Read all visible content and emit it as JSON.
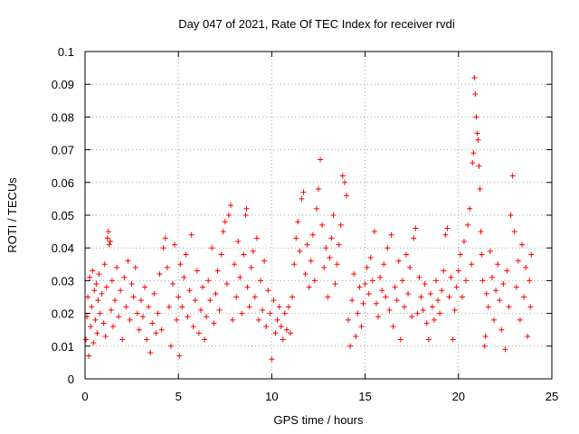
{
  "chart_data": {
    "type": "scatter",
    "title": "Day 047 of 2021, Rate Of TEC Index for receiver rvdi",
    "xlabel": "GPS time / hours",
    "ylabel": "ROTI / TECUs",
    "xlim": [
      0,
      25
    ],
    "ylim": [
      0,
      0.1
    ],
    "x_ticks": [
      "0",
      "5",
      "10",
      "15",
      "20",
      "25"
    ],
    "y_ticks": [
      "0",
      "0.01",
      "0.02",
      "0.03",
      "0.04",
      "0.05",
      "0.06",
      "0.07",
      "0.08",
      "0.09",
      "0.1"
    ],
    "grid": true,
    "marker": "+",
    "point_color": "#ff0000",
    "series": [
      {
        "name": "rvdi",
        "points": [
          [
            0.05,
            0.012
          ],
          [
            0.1,
            0.019
          ],
          [
            0.15,
            0.025
          ],
          [
            0.2,
            0.007
          ],
          [
            0.25,
            0.031
          ],
          [
            0.3,
            0.016
          ],
          [
            0.35,
            0.022
          ],
          [
            0.4,
            0.033
          ],
          [
            0.45,
            0.011
          ],
          [
            0.5,
            0.027
          ],
          [
            0.55,
            0.018
          ],
          [
            0.6,
            0.029
          ],
          [
            0.65,
            0.014
          ],
          [
            0.7,
            0.024
          ],
          [
            0.75,
            0.032
          ],
          [
            0.8,
            0.02
          ],
          [
            0.9,
            0.026
          ],
          [
            1.0,
            0.017
          ],
          [
            1.05,
            0.035
          ],
          [
            1.1,
            0.013
          ],
          [
            1.15,
            0.028
          ],
          [
            1.2,
            0.043
          ],
          [
            1.25,
            0.045
          ],
          [
            1.3,
            0.041
          ],
          [
            1.35,
            0.042
          ],
          [
            1.4,
            0.021
          ],
          [
            1.45,
            0.03
          ],
          [
            1.5,
            0.016
          ],
          [
            1.6,
            0.024
          ],
          [
            1.7,
            0.034
          ],
          [
            1.8,
            0.019
          ],
          [
            1.9,
            0.027
          ],
          [
            2.0,
            0.012
          ],
          [
            2.1,
            0.031
          ],
          [
            2.2,
            0.022
          ],
          [
            2.3,
            0.036
          ],
          [
            2.4,
            0.018
          ],
          [
            2.5,
            0.029
          ],
          [
            2.6,
            0.025
          ],
          [
            2.7,
            0.034
          ],
          [
            2.8,
            0.02
          ],
          [
            2.9,
            0.015
          ],
          [
            3.0,
            0.024
          ],
          [
            3.1,
            0.019
          ],
          [
            3.2,
            0.028
          ],
          [
            3.3,
            0.012
          ],
          [
            3.4,
            0.022
          ],
          [
            3.5,
            0.008
          ],
          [
            3.6,
            0.017
          ],
          [
            3.7,
            0.026
          ],
          [
            3.8,
            0.014
          ],
          [
            3.9,
            0.02
          ],
          [
            4.0,
            0.032
          ],
          [
            4.1,
            0.015
          ],
          [
            4.2,
            0.04
          ],
          [
            4.3,
            0.043
          ],
          [
            4.4,
            0.034
          ],
          [
            4.5,
            0.022
          ],
          [
            4.6,
            0.01
          ],
          [
            4.7,
            0.029
          ],
          [
            4.8,
            0.041
          ],
          [
            4.9,
            0.018
          ],
          [
            5.0,
            0.025
          ],
          [
            5.05,
            0.007
          ],
          [
            5.1,
            0.035
          ],
          [
            5.2,
            0.022
          ],
          [
            5.3,
            0.031
          ],
          [
            5.4,
            0.038
          ],
          [
            5.5,
            0.019
          ],
          [
            5.6,
            0.027
          ],
          [
            5.7,
            0.044
          ],
          [
            5.8,
            0.016
          ],
          [
            5.9,
            0.024
          ],
          [
            6.0,
            0.033
          ],
          [
            6.1,
            0.014
          ],
          [
            6.2,
            0.021
          ],
          [
            6.3,
            0.028
          ],
          [
            6.4,
            0.012
          ],
          [
            6.5,
            0.019
          ],
          [
            6.6,
            0.03
          ],
          [
            6.7,
            0.024
          ],
          [
            6.8,
            0.04
          ],
          [
            6.9,
            0.017
          ],
          [
            7.0,
            0.026
          ],
          [
            7.1,
            0.033
          ],
          [
            7.2,
            0.021
          ],
          [
            7.3,
            0.038
          ],
          [
            7.4,
            0.045
          ],
          [
            7.5,
            0.048
          ],
          [
            7.6,
            0.029
          ],
          [
            7.7,
            0.05
          ],
          [
            7.8,
            0.053
          ],
          [
            7.9,
            0.018
          ],
          [
            8.0,
            0.035
          ],
          [
            8.1,
            0.025
          ],
          [
            8.2,
            0.042
          ],
          [
            8.3,
            0.031
          ],
          [
            8.4,
            0.02
          ],
          [
            8.5,
            0.038
          ],
          [
            8.6,
            0.05
          ],
          [
            8.65,
            0.052
          ],
          [
            8.7,
            0.028
          ],
          [
            8.8,
            0.022
          ],
          [
            8.9,
            0.034
          ],
          [
            9.0,
            0.039
          ],
          [
            9.1,
            0.025
          ],
          [
            9.2,
            0.043
          ],
          [
            9.3,
            0.018
          ],
          [
            9.4,
            0.03
          ],
          [
            9.5,
            0.021
          ],
          [
            9.6,
            0.036
          ],
          [
            9.7,
            0.016
          ],
          [
            9.8,
            0.027
          ],
          [
            9.9,
            0.02
          ],
          [
            10.0,
            0.006
          ],
          [
            10.1,
            0.024
          ],
          [
            10.2,
            0.014
          ],
          [
            10.3,
            0.018
          ],
          [
            10.4,
            0.022
          ],
          [
            10.5,
            0.016
          ],
          [
            10.6,
            0.012
          ],
          [
            10.7,
            0.02
          ],
          [
            10.8,
            0.015
          ],
          [
            10.9,
            0.022
          ],
          [
            11.0,
            0.014
          ],
          [
            11.1,
            0.025
          ],
          [
            11.2,
            0.035
          ],
          [
            11.3,
            0.043
          ],
          [
            11.4,
            0.048
          ],
          [
            11.5,
            0.039
          ],
          [
            11.6,
            0.055
          ],
          [
            11.7,
            0.057
          ],
          [
            11.8,
            0.032
          ],
          [
            11.9,
            0.041
          ],
          [
            12.0,
            0.028
          ],
          [
            12.1,
            0.036
          ],
          [
            12.2,
            0.044
          ],
          [
            12.3,
            0.03
          ],
          [
            12.4,
            0.052
          ],
          [
            12.5,
            0.058
          ],
          [
            12.6,
            0.067
          ],
          [
            12.7,
            0.047
          ],
          [
            12.8,
            0.034
          ],
          [
            12.9,
            0.04
          ],
          [
            13.0,
            0.025
          ],
          [
            13.1,
            0.037
          ],
          [
            13.2,
            0.043
          ],
          [
            13.3,
            0.05
          ],
          [
            13.4,
            0.029
          ],
          [
            13.5,
            0.035
          ],
          [
            13.6,
            0.041
          ],
          [
            13.7,
            0.047
          ],
          [
            13.8,
            0.062
          ],
          [
            13.9,
            0.06
          ],
          [
            14.0,
            0.056
          ],
          [
            14.1,
            0.018
          ],
          [
            14.2,
            0.01
          ],
          [
            14.3,
            0.024
          ],
          [
            14.4,
            0.032
          ],
          [
            14.5,
            0.013
          ],
          [
            14.6,
            0.02
          ],
          [
            14.7,
            0.028
          ],
          [
            14.8,
            0.016
          ],
          [
            14.9,
            0.023
          ],
          [
            15.0,
            0.029
          ],
          [
            15.1,
            0.034
          ],
          [
            15.2,
            0.026
          ],
          [
            15.3,
            0.037
          ],
          [
            15.4,
            0.03
          ],
          [
            15.5,
            0.045
          ],
          [
            15.6,
            0.023
          ],
          [
            15.7,
            0.019
          ],
          [
            15.8,
            0.031
          ],
          [
            15.9,
            0.027
          ],
          [
            16.0,
            0.035
          ],
          [
            16.1,
            0.025
          ],
          [
            16.2,
            0.04
          ],
          [
            16.3,
            0.021
          ],
          [
            16.4,
            0.044
          ],
          [
            16.5,
            0.016
          ],
          [
            16.6,
            0.028
          ],
          [
            16.7,
            0.024
          ],
          [
            16.8,
            0.036
          ],
          [
            16.9,
            0.012
          ],
          [
            17.0,
            0.03
          ],
          [
            17.1,
            0.022
          ],
          [
            17.2,
            0.038
          ],
          [
            17.3,
            0.026
          ],
          [
            17.4,
            0.034
          ],
          [
            17.5,
            0.019
          ],
          [
            17.6,
            0.043
          ],
          [
            17.7,
            0.046
          ],
          [
            17.8,
            0.02
          ],
          [
            17.9,
            0.031
          ],
          [
            18.0,
            0.025
          ],
          [
            18.1,
            0.021
          ],
          [
            18.2,
            0.029
          ],
          [
            18.3,
            0.017
          ],
          [
            18.4,
            0.012
          ],
          [
            18.5,
            0.026
          ],
          [
            18.6,
            0.022
          ],
          [
            18.7,
            0.018
          ],
          [
            18.8,
            0.03
          ],
          [
            18.9,
            0.024
          ],
          [
            19.0,
            0.02
          ],
          [
            19.1,
            0.027
          ],
          [
            19.2,
            0.033
          ],
          [
            19.3,
            0.044
          ],
          [
            19.4,
            0.046
          ],
          [
            19.5,
            0.025
          ],
          [
            19.6,
            0.031
          ],
          [
            19.7,
            0.012
          ],
          [
            19.8,
            0.021
          ],
          [
            19.9,
            0.028
          ],
          [
            20.0,
            0.033
          ],
          [
            20.1,
            0.038
          ],
          [
            20.2,
            0.025
          ],
          [
            20.3,
            0.042
          ],
          [
            20.4,
            0.03
          ],
          [
            20.5,
            0.047
          ],
          [
            20.6,
            0.052
          ],
          [
            20.7,
            0.035
          ],
          [
            20.75,
            0.066
          ],
          [
            20.8,
            0.069
          ],
          [
            20.85,
            0.092
          ],
          [
            20.9,
            0.087
          ],
          [
            20.95,
            0.08
          ],
          [
            21.0,
            0.075
          ],
          [
            21.05,
            0.073
          ],
          [
            21.1,
            0.065
          ],
          [
            21.15,
            0.058
          ],
          [
            21.2,
            0.045
          ],
          [
            21.25,
            0.038
          ],
          [
            21.3,
            0.03
          ],
          [
            21.4,
            0.01
          ],
          [
            21.45,
            0.013
          ],
          [
            21.5,
            0.026
          ],
          [
            21.6,
            0.022
          ],
          [
            21.7,
            0.039
          ],
          [
            21.8,
            0.031
          ],
          [
            21.9,
            0.018
          ],
          [
            22.0,
            0.027
          ],
          [
            22.1,
            0.035
          ],
          [
            22.2,
            0.024
          ],
          [
            22.3,
            0.015
          ],
          [
            22.4,
            0.029
          ],
          [
            22.5,
            0.009
          ],
          [
            22.6,
            0.033
          ],
          [
            22.7,
            0.022
          ],
          [
            22.8,
            0.05
          ],
          [
            22.9,
            0.062
          ],
          [
            23.0,
            0.045
          ],
          [
            23.1,
            0.028
          ],
          [
            23.2,
            0.036
          ],
          [
            23.3,
            0.018
          ],
          [
            23.4,
            0.041
          ],
          [
            23.5,
            0.025
          ],
          [
            23.6,
            0.034
          ],
          [
            23.7,
            0.013
          ],
          [
            23.8,
            0.03
          ],
          [
            23.85,
            0.022
          ],
          [
            23.9,
            0.038
          ]
        ]
      }
    ]
  }
}
